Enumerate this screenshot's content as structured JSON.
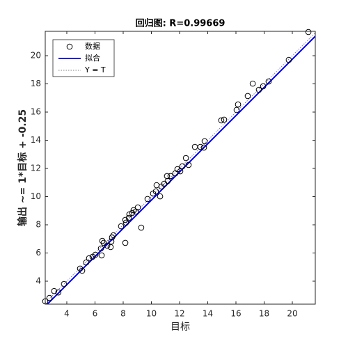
{
  "chart_data": {
    "type": "scatter",
    "title": "回归图: R=0.99669",
    "xlabel": "目标",
    "ylabel": "输出 ~= 1*目标 + -0.25",
    "xlim": [
      2.47,
      21.63
    ],
    "ylim": [
      2.37,
      21.73
    ],
    "xticks": [
      4,
      6,
      8,
      10,
      12,
      14,
      16,
      18,
      20
    ],
    "yticks": [
      4,
      6,
      8,
      10,
      12,
      14,
      16,
      18,
      20
    ],
    "grid": false,
    "legend": "top-left",
    "series": [
      {
        "name": "数据",
        "color": "#000000",
        "x": [
          2.47,
          2.77,
          3.1,
          3.4,
          3.8,
          4.94,
          5.09,
          5.38,
          5.58,
          5.83,
          6.03,
          6.47,
          6.42,
          6.62,
          6.52,
          6.87,
          7.11,
          7.16,
          7.21,
          7.31,
          7.85,
          8.15,
          8.15,
          8.2,
          8.4,
          8.44,
          8.64,
          8.74,
          8.89,
          9.04,
          9.28,
          9.73,
          10.12,
          10.32,
          10.37,
          10.62,
          10.72,
          10.91,
          11.11,
          11.16,
          11.36,
          11.7,
          11.85,
          12.05,
          12.2,
          12.45,
          12.64,
          13.09,
          13.48,
          13.73,
          13.78,
          14.96,
          15.16,
          16.05,
          16.15,
          16.84,
          17.19,
          17.63,
          17.93,
          18.32,
          19.75,
          21.14
        ],
        "values": [
          2.57,
          2.81,
          3.3,
          3.2,
          3.8,
          4.89,
          4.74,
          5.33,
          5.63,
          5.73,
          5.88,
          5.83,
          6.32,
          6.72,
          6.86,
          6.52,
          6.42,
          6.81,
          7.11,
          7.26,
          7.9,
          6.72,
          8.35,
          8.15,
          8.49,
          8.74,
          8.84,
          9.04,
          8.94,
          9.23,
          7.8,
          9.83,
          10.22,
          10.37,
          10.81,
          10.02,
          10.72,
          10.91,
          11.46,
          11.11,
          11.46,
          11.65,
          11.95,
          11.8,
          12.15,
          12.74,
          12.25,
          13.53,
          13.53,
          13.48,
          13.93,
          15.41,
          15.46,
          16.15,
          16.54,
          17.14,
          18.02,
          17.58,
          17.83,
          18.17,
          19.7,
          21.68
        ]
      },
      {
        "name": "拟合",
        "color": "#0000ff",
        "slope": 1,
        "intercept": -0.25
      },
      {
        "name": "Y = T",
        "color": "#808080"
      }
    ]
  }
}
